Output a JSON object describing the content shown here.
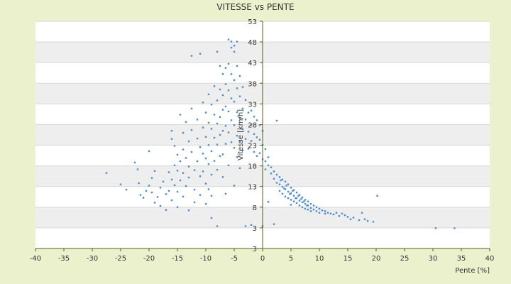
{
  "chart_data": {
    "type": "scatter",
    "title": "VITESSE vs PENTE",
    "xlabel": "Pente [%]",
    "ylabel": "Vitesse [km/h]",
    "xlim": [
      -40,
      40
    ],
    "ylim": [
      -3,
      53
    ],
    "x_ticks": [
      "-40",
      "-35",
      "-30",
      "-25",
      "-20",
      "-15",
      "-10",
      "-5",
      "0",
      "5",
      "10",
      "15",
      "20",
      "25",
      "30",
      "35",
      "40"
    ],
    "y_ticks": [
      "3",
      "3",
      "8",
      "13",
      "18",
      "23",
      "28",
      "33",
      "38",
      "43",
      "48",
      "53"
    ],
    "grid": true,
    "legend": "none",
    "colors": {
      "marker": "#4a8bd1",
      "plot_bg": "#ffffff",
      "band": "#eeeeee",
      "page_bg": "#ebf1cd",
      "axis": "#5a5a1a"
    },
    "series": [
      {
        "values": [
          [
            -27.5,
            15.6
          ],
          [
            -25,
            12.8
          ],
          [
            -24,
            11.5
          ],
          [
            -22.5,
            18.2
          ],
          [
            -22,
            16.5
          ],
          [
            -21.8,
            13.1
          ],
          [
            -21.5,
            10.2
          ],
          [
            -21,
            9.5
          ],
          [
            -20.5,
            11.2
          ],
          [
            -20,
            21
          ],
          [
            -20,
            12.5
          ],
          [
            -19.5,
            14.4
          ],
          [
            -19.5,
            10.8
          ],
          [
            -19,
            16.1
          ],
          [
            -19,
            8.3
          ],
          [
            -18.5,
            9.7
          ],
          [
            -18,
            12
          ],
          [
            -18,
            7.5
          ],
          [
            -17.5,
            13.5
          ],
          [
            -17,
            10.4
          ],
          [
            -17,
            6.5
          ],
          [
            -16.5,
            15.8
          ],
          [
            -16.5,
            11.2
          ],
          [
            -16,
            26
          ],
          [
            -16,
            24
          ],
          [
            -16,
            14
          ],
          [
            -16,
            8.9
          ],
          [
            -15.5,
            22.3
          ],
          [
            -15.5,
            17.5
          ],
          [
            -15.5,
            12.6
          ],
          [
            -15,
            20.1
          ],
          [
            -15,
            16.2
          ],
          [
            -15,
            11
          ],
          [
            -15,
            7.2
          ],
          [
            -14.5,
            30
          ],
          [
            -14.5,
            18.5
          ],
          [
            -14.5,
            13.8
          ],
          [
            -14,
            25.5
          ],
          [
            -14,
            21.4
          ],
          [
            -14,
            15.6
          ],
          [
            -14,
            9.8
          ],
          [
            -13.5,
            28.2
          ],
          [
            -13.5,
            19.3
          ],
          [
            -13.5,
            12.4
          ],
          [
            -13,
            23.4
          ],
          [
            -13,
            17.2
          ],
          [
            -13,
            14.5
          ],
          [
            -13,
            6.4
          ],
          [
            -12.5,
            31.5
          ],
          [
            -12.5,
            26.2
          ],
          [
            -12.5,
            44.5
          ],
          [
            -12.5,
            20.8
          ],
          [
            -12,
            16.3
          ],
          [
            -12,
            11.5
          ],
          [
            -12,
            8.4
          ],
          [
            -11.5,
            28.8
          ],
          [
            -11.5,
            24.1
          ],
          [
            -11.5,
            18.5
          ],
          [
            -11,
            22
          ],
          [
            -11,
            14.8
          ],
          [
            -11,
            10.2
          ],
          [
            -11,
            45
          ],
          [
            -10.5,
            33
          ],
          [
            -10.5,
            26.8
          ],
          [
            -10.5,
            20.4
          ],
          [
            -10.5,
            16
          ],
          [
            -10,
            30.5
          ],
          [
            -10,
            24.5
          ],
          [
            -10,
            19.2
          ],
          [
            -10,
            13
          ],
          [
            -10,
            8
          ],
          [
            -9.5,
            35
          ],
          [
            -9.5,
            28
          ],
          [
            -9.5,
            22.5
          ],
          [
            -9.5,
            17.8
          ],
          [
            -9.5,
            11.6
          ],
          [
            -9,
            32.5
          ],
          [
            -9,
            26.5
          ],
          [
            -9,
            21
          ],
          [
            -9,
            15.2
          ],
          [
            -9,
            10
          ],
          [
            -9,
            4.5
          ],
          [
            -8.5,
            37
          ],
          [
            -8.5,
            30
          ],
          [
            -8.5,
            24.3
          ],
          [
            -8.5,
            18.6
          ],
          [
            -8,
            33.5
          ],
          [
            -8,
            45.5
          ],
          [
            -8,
            27.8
          ],
          [
            -8,
            22.6
          ],
          [
            -8,
            16.4
          ],
          [
            -8,
            2.5
          ],
          [
            -7.5,
            42
          ],
          [
            -7.5,
            36.2
          ],
          [
            -7.5,
            29.4
          ],
          [
            -7.5,
            25
          ],
          [
            -7.5,
            19.8
          ],
          [
            -7,
            40
          ],
          [
            -7,
            34.8
          ],
          [
            -7,
            31.2
          ],
          [
            -7,
            26
          ],
          [
            -7,
            20.2
          ],
          [
            -7,
            14.6
          ],
          [
            -6.5,
            41.5
          ],
          [
            -6.5,
            37.5
          ],
          [
            -6.5,
            32
          ],
          [
            -6.5,
            27.2
          ],
          [
            -6.5,
            22.8
          ],
          [
            -6.5,
            10.5
          ],
          [
            -6,
            48.5
          ],
          [
            -6,
            42.5
          ],
          [
            -6,
            36
          ],
          [
            -6,
            30.8
          ],
          [
            -6,
            25.6
          ],
          [
            -6,
            17.5
          ],
          [
            -5.5,
            48
          ],
          [
            -5.5,
            46.5
          ],
          [
            -5.5,
            40
          ],
          [
            -5.5,
            34
          ],
          [
            -5.5,
            28.6
          ],
          [
            -5.5,
            23.2
          ],
          [
            -5,
            47
          ],
          [
            -5,
            45.5
          ],
          [
            -5,
            38.5
          ],
          [
            -5,
            33.2
          ],
          [
            -5,
            27.4
          ],
          [
            -5,
            21.8
          ],
          [
            -5,
            12.5
          ],
          [
            -4.5,
            48
          ],
          [
            -4.5,
            42
          ],
          [
            -4.5,
            36.5
          ],
          [
            -4.5,
            30.6
          ],
          [
            -4.5,
            24.8
          ],
          [
            -4.5,
            19.5
          ],
          [
            -4,
            39.5
          ],
          [
            -4,
            34.5
          ],
          [
            -4,
            29
          ],
          [
            -4,
            23.6
          ],
          [
            -4,
            16.8
          ],
          [
            -3.5,
            36.8
          ],
          [
            -3.5,
            31.5
          ],
          [
            -3.5,
            26.4
          ],
          [
            -3.5,
            21.2
          ],
          [
            -3,
            33.6
          ],
          [
            -3,
            28.8
          ],
          [
            -3,
            24
          ],
          [
            -3,
            2.5
          ],
          [
            -2.5,
            30.5
          ],
          [
            -2.5,
            25.8
          ],
          [
            -2.5,
            21.6
          ],
          [
            -2,
            31
          ],
          [
            -2,
            27.5
          ],
          [
            -2,
            23.5
          ],
          [
            -2,
            2.8
          ],
          [
            -1.5,
            29.5
          ],
          [
            -1.5,
            25.2
          ],
          [
            -1.5,
            20.8
          ],
          [
            -1,
            28.6
          ],
          [
            -1,
            24.4
          ],
          [
            -1,
            19.8
          ],
          [
            -0.5,
            27.4
          ],
          [
            -0.5,
            23.8
          ],
          [
            -0.5,
            20.5
          ],
          [
            0,
            26
          ],
          [
            0,
            22.5
          ],
          [
            0,
            19
          ],
          [
            0,
            2.5
          ],
          [
            0.5,
            21.5
          ],
          [
            0.5,
            18.5
          ],
          [
            0.5,
            16.5
          ],
          [
            1,
            19.5
          ],
          [
            1,
            17.5
          ],
          [
            1,
            8.5
          ],
          [
            1.5,
            17
          ],
          [
            1.5,
            15.5
          ],
          [
            2,
            3
          ],
          [
            2,
            16
          ],
          [
            2,
            14.2
          ],
          [
            2.5,
            15.2
          ],
          [
            2.5,
            13.2
          ],
          [
            2.5,
            28.5
          ],
          [
            3,
            14.6
          ],
          [
            3,
            12.8
          ],
          [
            3,
            11.2
          ],
          [
            3.2,
            13.8
          ],
          [
            3.5,
            14
          ],
          [
            3.5,
            12.2
          ],
          [
            3.5,
            10.5
          ],
          [
            3.8,
            11.8
          ],
          [
            4,
            13.5
          ],
          [
            4,
            11.6
          ],
          [
            4,
            9.8
          ],
          [
            4.2,
            12.5
          ],
          [
            4.5,
            12.8
          ],
          [
            4.5,
            11
          ],
          [
            4.5,
            9.4
          ],
          [
            4.8,
            10.4
          ],
          [
            5,
            12
          ],
          [
            5,
            10.6
          ],
          [
            5,
            9
          ],
          [
            5,
            7.8
          ],
          [
            5.3,
            11.2
          ],
          [
            5.5,
            11.4
          ],
          [
            5.5,
            10
          ],
          [
            5.5,
            8.6
          ],
          [
            5.8,
            9.4
          ],
          [
            6,
            10.8
          ],
          [
            6,
            9.4
          ],
          [
            6,
            8.2
          ],
          [
            6.3,
            10
          ],
          [
            6.5,
            10.2
          ],
          [
            6.5,
            8.8
          ],
          [
            6.5,
            7.6
          ],
          [
            6.8,
            9.2
          ],
          [
            7,
            9.6
          ],
          [
            7,
            8.4
          ],
          [
            7,
            7.2
          ],
          [
            7.3,
            8.6
          ],
          [
            7.5,
            9
          ],
          [
            7.5,
            8
          ],
          [
            7.5,
            6.8
          ],
          [
            7.8,
            7.6
          ],
          [
            8,
            8.6
          ],
          [
            8,
            7.6
          ],
          [
            8,
            6.6
          ],
          [
            8.5,
            8
          ],
          [
            8.5,
            7
          ],
          [
            8.5,
            6.2
          ],
          [
            9,
            7.6
          ],
          [
            9,
            6.6
          ],
          [
            9.5,
            7.2
          ],
          [
            9.5,
            6.2
          ],
          [
            10,
            6.8
          ],
          [
            10,
            5.8
          ],
          [
            10.5,
            6.4
          ],
          [
            11,
            6.2
          ],
          [
            11,
            5.6
          ],
          [
            11.5,
            5.8
          ],
          [
            12,
            5.6
          ],
          [
            12.5,
            5.4
          ],
          [
            13,
            5.8
          ],
          [
            13.5,
            5
          ],
          [
            14,
            5.6
          ],
          [
            14.5,
            5.2
          ],
          [
            15,
            4.8
          ],
          [
            15.5,
            4.2
          ],
          [
            16,
            4.6
          ],
          [
            17,
            4
          ],
          [
            17.5,
            5.8
          ],
          [
            18,
            4.2
          ],
          [
            18.5,
            3.8
          ],
          [
            19.5,
            3.6
          ],
          [
            20.2,
            10
          ],
          [
            30.5,
            2
          ],
          [
            33.8,
            2
          ]
        ]
      }
    ]
  }
}
